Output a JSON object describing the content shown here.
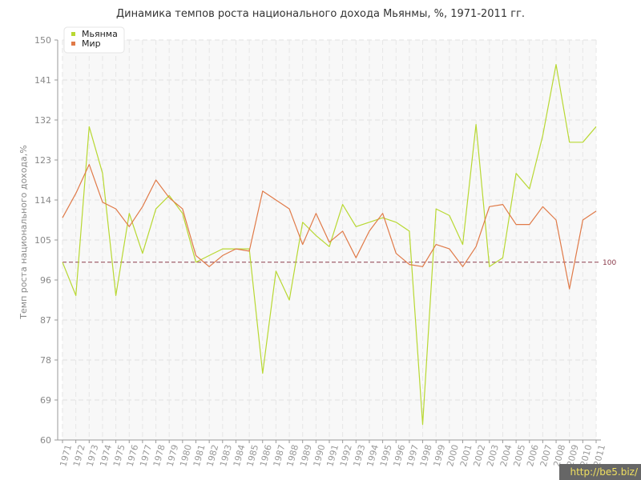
{
  "chart_data": {
    "type": "line",
    "title": "Динамика темпов роста национального дохода Мьянмы, %, 1971-2011 гг.",
    "ylabel": "Темп роста национального дохода,%",
    "xlabel": "",
    "ylim": [
      60,
      150
    ],
    "yticks": [
      60,
      69,
      78,
      87,
      96,
      105,
      114,
      123,
      132,
      141,
      150
    ],
    "x": [
      1971,
      1972,
      1973,
      1974,
      1975,
      1976,
      1977,
      1978,
      1979,
      1980,
      1981,
      1982,
      1983,
      1984,
      1985,
      1986,
      1987,
      1988,
      1989,
      1990,
      1991,
      1992,
      1993,
      1994,
      1995,
      1996,
      1997,
      1998,
      1999,
      2000,
      2001,
      2002,
      2003,
      2004,
      2005,
      2006,
      2007,
      2008,
      2009,
      2010,
      2011
    ],
    "grid": true,
    "legend_position": "top-left",
    "reference_line": {
      "value": 100,
      "label": "100",
      "color": "#8b3a4a"
    },
    "series": [
      {
        "name": "Мьянма",
        "color": "#b8d832",
        "values": [
          100.0,
          92.5,
          130.5,
          120.0,
          92.5,
          111.0,
          102.0,
          112.0,
          115.0,
          111.0,
          100.0,
          101.5,
          103.0,
          103.0,
          103.0,
          75.0,
          98.0,
          91.5,
          109.0,
          106.0,
          103.5,
          113.0,
          108.0,
          109.0,
          110.0,
          109.0,
          107.0,
          63.5,
          112.0,
          110.5,
          104.0,
          131.0,
          99.0,
          101.0,
          120.0,
          116.5,
          128.5,
          144.5,
          127.0,
          127.0,
          130.5
        ]
      },
      {
        "name": "Мир",
        "color": "#e07a48",
        "values": [
          110.0,
          115.5,
          122.0,
          113.5,
          112.0,
          108.0,
          112.5,
          118.5,
          114.5,
          112.0,
          101.5,
          99.0,
          101.5,
          103.0,
          102.5,
          116.0,
          114.0,
          112.0,
          104.0,
          111.0,
          104.5,
          107.0,
          101.0,
          107.0,
          111.0,
          102.0,
          99.5,
          99.0,
          104.0,
          103.0,
          99.0,
          103.5,
          112.5,
          113.0,
          108.5,
          108.5,
          112.5,
          109.5,
          94.0,
          109.5,
          111.5
        ]
      }
    ]
  },
  "watermark": "http://be5.biz/"
}
